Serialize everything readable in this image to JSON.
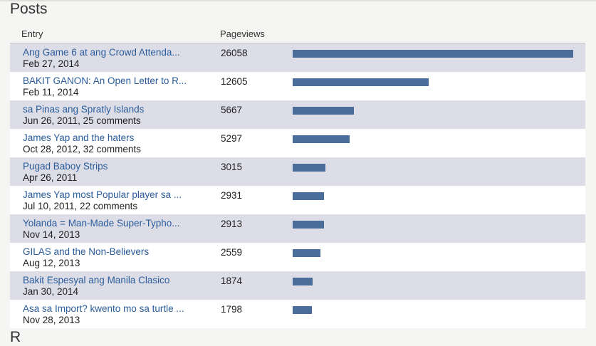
{
  "section": {
    "title": "Posts",
    "next_title": "R"
  },
  "table": {
    "headers": {
      "entry": "Entry",
      "pageviews": "Pageviews"
    },
    "max_views": 26058,
    "rows": [
      {
        "title": "Ang Game 6 at ang Crowd Attenda...",
        "meta": "Feb 27, 2014",
        "views": 26058
      },
      {
        "title": "BAKIT GANON: An Open Letter to R...",
        "meta": "Feb 11, 2014",
        "views": 12605
      },
      {
        "title": "sa Pinas ang Spratly Islands",
        "meta": "Jun 26, 2011, 25 comments",
        "views": 5667
      },
      {
        "title": "James Yap and the haters",
        "meta": "Oct 28, 2012, 32 comments",
        "views": 5297
      },
      {
        "title": "Pugad Baboy Strips",
        "meta": "Apr 26, 2011",
        "views": 3015
      },
      {
        "title": "James Yap most Popular player sa ...",
        "meta": "Jul 10, 2011, 22 comments",
        "views": 2931
      },
      {
        "title": "Yolanda = Man-Made Super-Typho...",
        "meta": "Nov 14, 2013",
        "views": 2913
      },
      {
        "title": "GILAS and the Non-Believers",
        "meta": "Aug 12, 2013",
        "views": 2559
      },
      {
        "title": "Bakit Espesyal ang Manila Clasico",
        "meta": "Jan 30, 2014",
        "views": 1874
      },
      {
        "title": "Asa sa Import? kwento mo sa turtle ...",
        "meta": "Nov 28, 2013",
        "views": 1798
      }
    ]
  },
  "colors": {
    "bar": "#4a6d99",
    "link": "#2a5c9a",
    "row_alt": "#dcdde6"
  }
}
